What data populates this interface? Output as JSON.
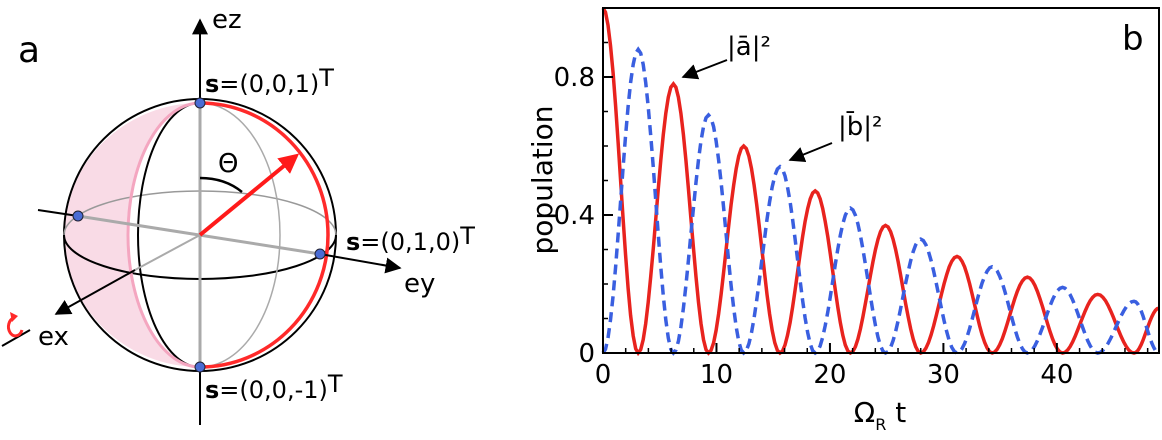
{
  "panel_a": {
    "label": "a",
    "axes": {
      "ez": "ez",
      "ey": "ey",
      "ex": "ex"
    },
    "angle_label": "Θ",
    "states": [
      {
        "bold": "s",
        "text": "=(0,0,1)",
        "sup": "T"
      },
      {
        "bold": "s",
        "text": "=(0,1,0)",
        "sup": "T"
      },
      {
        "bold": "s",
        "text": "=(0,0,-1)",
        "sup": "T"
      }
    ],
    "colors": {
      "sphere_fill": "#f9dbe6",
      "arc": "#ff2a2a",
      "state_point": "#4a6cd4"
    }
  },
  "panel_b": {
    "label": "b",
    "annotations": {
      "a_label": "|ā|²",
      "b_label": "|b̄|²"
    }
  },
  "chart_data": {
    "type": "line",
    "title": "",
    "xlabel": "Ω_R t",
    "ylabel": "population",
    "xlim": [
      0,
      49
    ],
    "ylim": [
      0,
      1.0
    ],
    "x_ticks": [
      0,
      10,
      20,
      30,
      40
    ],
    "y_ticks": [
      0,
      0.4,
      0.8
    ],
    "x_tick_labels": [
      "0",
      "10",
      "20",
      "30",
      "40"
    ],
    "y_tick_labels": [
      "0",
      "0.4",
      "0.8"
    ],
    "grid": false,
    "series": [
      {
        "name": "|ā|²",
        "style": "solid",
        "color": "#e8231e",
        "x": [
          0,
          3.1,
          6.2,
          9.3,
          12.4,
          15.6,
          18.7,
          21.8,
          24.9,
          28.0,
          31.2,
          34.3,
          37.4,
          40.5,
          43.6,
          46.8,
          49
        ],
        "y": [
          1.0,
          0.0,
          0.78,
          0.0,
          0.6,
          0.0,
          0.47,
          0.0,
          0.37,
          0.0,
          0.28,
          0.0,
          0.22,
          0.0,
          0.17,
          0.0,
          0.13
        ]
      },
      {
        "name": "|b̄|²",
        "style": "dashed",
        "color": "#3a5fe0",
        "x": [
          0,
          3.1,
          6.2,
          9.3,
          12.4,
          15.6,
          18.7,
          21.8,
          24.9,
          28.0,
          31.2,
          34.3,
          37.4,
          40.5,
          43.6,
          46.8,
          49
        ],
        "y": [
          0.0,
          0.88,
          0.0,
          0.69,
          0.0,
          0.54,
          0.0,
          0.42,
          0.0,
          0.33,
          0.0,
          0.25,
          0.0,
          0.19,
          0.0,
          0.15,
          0.0
        ]
      }
    ]
  }
}
